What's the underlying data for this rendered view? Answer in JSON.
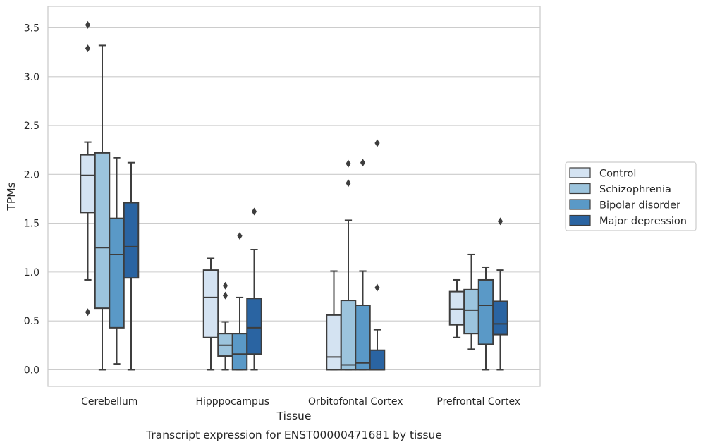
{
  "chart_data": {
    "type": "box",
    "xlabel": "Tissue",
    "ylabel": "TPMs",
    "caption": "Transcript expression for ENST00000471681 by tissue",
    "ylim": [
      -0.17,
      3.72
    ],
    "yticks": [
      "0.0",
      "0.5",
      "1.0",
      "1.5",
      "2.0",
      "2.5",
      "3.0",
      "3.5"
    ],
    "ytick_values": [
      0.0,
      0.5,
      1.0,
      1.5,
      2.0,
      2.5,
      3.0,
      3.5
    ],
    "grid": "horizontal",
    "legend_position": "right",
    "categories": [
      "Cerebellum",
      "Hipppocampus",
      "Orbitofontal Cortex",
      "Prefrontal Cortex"
    ],
    "series": [
      {
        "name": "Control",
        "color": "#d4e3f2",
        "boxes": [
          {
            "whislo": 0.92,
            "q1": 1.61,
            "med": 1.99,
            "q3": 2.2,
            "whishi": 2.33,
            "fliers": [
              0.59,
              3.29,
              3.53
            ]
          },
          {
            "whislo": 0.0,
            "q1": 0.33,
            "med": 0.74,
            "q3": 1.02,
            "whishi": 1.14,
            "fliers": []
          },
          {
            "whislo": 0.0,
            "q1": 0.0,
            "med": 0.13,
            "q3": 0.56,
            "whishi": 1.01,
            "fliers": []
          },
          {
            "whislo": 0.33,
            "q1": 0.46,
            "med": 0.62,
            "q3": 0.8,
            "whishi": 0.92,
            "fliers": []
          }
        ]
      },
      {
        "name": "Schizophrenia",
        "color": "#9cc4dd",
        "boxes": [
          {
            "whislo": 0.0,
            "q1": 0.63,
            "med": 1.25,
            "q3": 2.22,
            "whishi": 3.32,
            "fliers": []
          },
          {
            "whislo": 0.0,
            "q1": 0.14,
            "med": 0.25,
            "q3": 0.37,
            "whishi": 0.49,
            "fliers": [
              0.76,
              0.86
            ]
          },
          {
            "whislo": 0.0,
            "q1": 0.0,
            "med": 0.05,
            "q3": 0.71,
            "whishi": 1.53,
            "fliers": [
              1.91,
              2.11
            ]
          },
          {
            "whislo": 0.21,
            "q1": 0.37,
            "med": 0.61,
            "q3": 0.82,
            "whishi": 1.18,
            "fliers": []
          }
        ]
      },
      {
        "name": "Bipolar disorder",
        "color": "#5a99c7",
        "boxes": [
          {
            "whislo": 0.06,
            "q1": 0.43,
            "med": 1.18,
            "q3": 1.55,
            "whishi": 2.17,
            "fliers": []
          },
          {
            "whislo": 0.0,
            "q1": 0.0,
            "med": 0.16,
            "q3": 0.37,
            "whishi": 0.74,
            "fliers": [
              1.37
            ]
          },
          {
            "whislo": 0.0,
            "q1": 0.0,
            "med": 0.07,
            "q3": 0.66,
            "whishi": 1.01,
            "fliers": [
              2.12
            ]
          },
          {
            "whislo": 0.0,
            "q1": 0.26,
            "med": 0.66,
            "q3": 0.92,
            "whishi": 1.05,
            "fliers": []
          }
        ]
      },
      {
        "name": "Major depression",
        "color": "#2a64a2",
        "boxes": [
          {
            "whislo": 0.0,
            "q1": 0.94,
            "med": 1.26,
            "q3": 1.71,
            "whishi": 2.12,
            "fliers": []
          },
          {
            "whislo": 0.0,
            "q1": 0.16,
            "med": 0.43,
            "q3": 0.73,
            "whishi": 1.23,
            "fliers": [
              1.62
            ]
          },
          {
            "whislo": 0.0,
            "q1": 0.0,
            "med": 0.0,
            "q3": 0.2,
            "whishi": 0.41,
            "fliers": [
              0.84,
              2.32
            ]
          },
          {
            "whislo": 0.0,
            "q1": 0.36,
            "med": 0.47,
            "q3": 0.7,
            "whishi": 1.02,
            "fliers": [
              1.52
            ]
          }
        ]
      }
    ]
  }
}
